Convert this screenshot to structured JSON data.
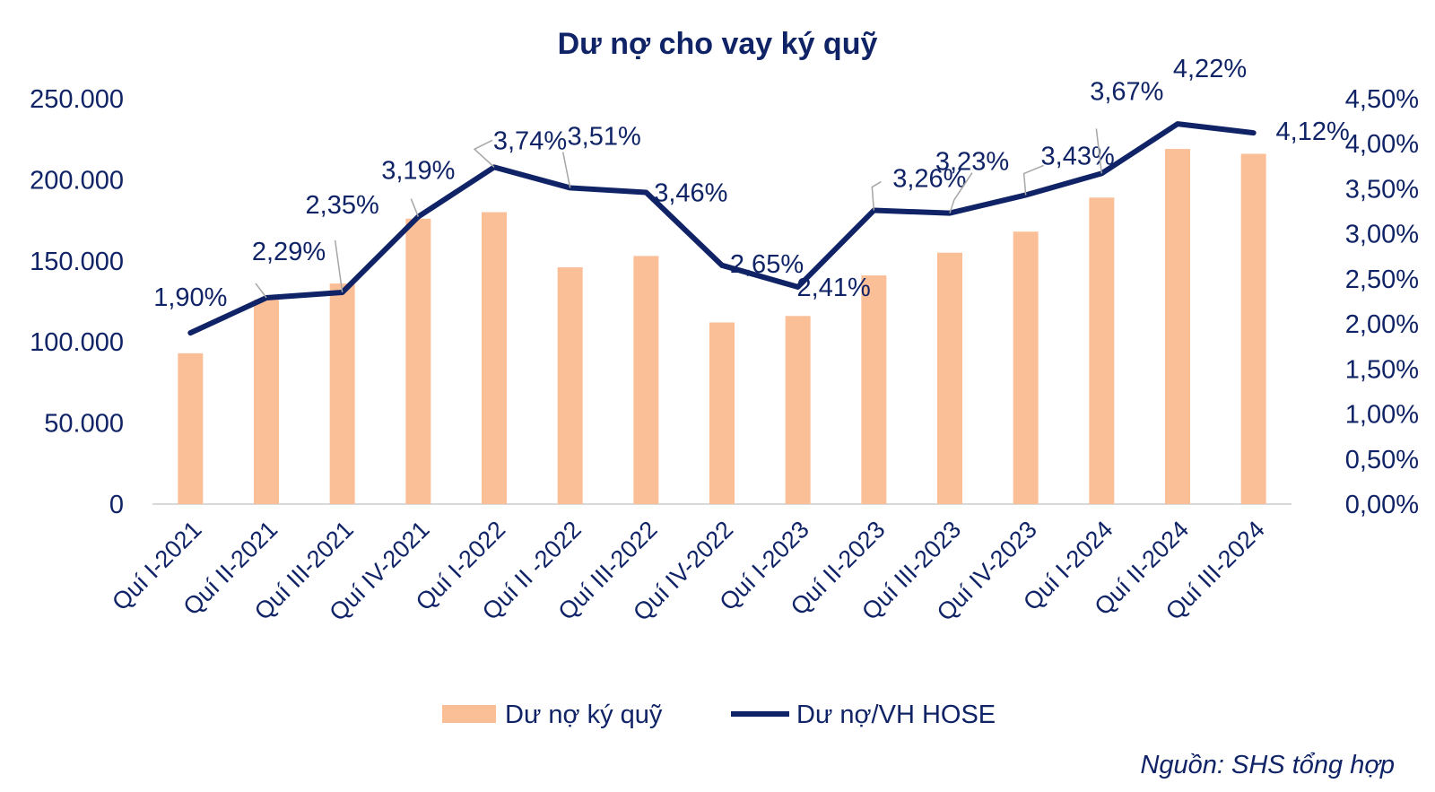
{
  "chart_data": {
    "type": "bar+line",
    "title": "Dư nợ cho vay ký quỹ",
    "categories": [
      "Quí I-2021",
      "Quí II-2021",
      "Quí III-2021",
      "Quí IV-2021",
      "Quí I-2022",
      "Quí II -2022",
      "Quí III-2022",
      "Quí IV-2022",
      "Quí I-2023",
      "Quí II-2023",
      "Quí III-2023",
      "Quí IV-2023",
      "Quí I-2024",
      "Quí II-2024",
      "Quí III-2024"
    ],
    "series": [
      {
        "name": "Dư nợ ký quỹ",
        "type": "bar",
        "axis": "left",
        "color": "#fbbf98",
        "values": [
          93000,
          126000,
          136000,
          176000,
          180000,
          146000,
          153000,
          112000,
          116000,
          141000,
          155000,
          168000,
          189000,
          219000,
          216000
        ]
      },
      {
        "name": "Dư nợ/VH HOSE",
        "type": "line",
        "axis": "right",
        "color": "#0f2366",
        "values": [
          1.9,
          2.29,
          2.35,
          3.19,
          3.74,
          3.51,
          3.46,
          2.65,
          2.41,
          3.26,
          3.23,
          3.43,
          3.67,
          4.22,
          4.12
        ],
        "labels": [
          "1,90%",
          "2,29%",
          "2,35%",
          "3,19%",
          "3,74%",
          "3,51%",
          "3,46%",
          "2,65%",
          "2,41%",
          "3,26%",
          "3,23%",
          "3,43%",
          "3,67%",
          "4,22%",
          "4,12%"
        ]
      }
    ],
    "y_left": {
      "ylim": [
        0,
        250000
      ],
      "ticks": [
        "0",
        "50.000",
        "100.000",
        "150.000",
        "200.000",
        "250.000"
      ]
    },
    "y_right": {
      "ylim": [
        0,
        4.5
      ],
      "ticks": [
        "0,00%",
        "0,50%",
        "1,00%",
        "1,50%",
        "2,00%",
        "2,50%",
        "3,00%",
        "3,50%",
        "4,00%",
        "4,50%"
      ]
    },
    "grid": false,
    "legend_position": "bottom",
    "source": "Nguồn: SHS tổng hợp"
  }
}
